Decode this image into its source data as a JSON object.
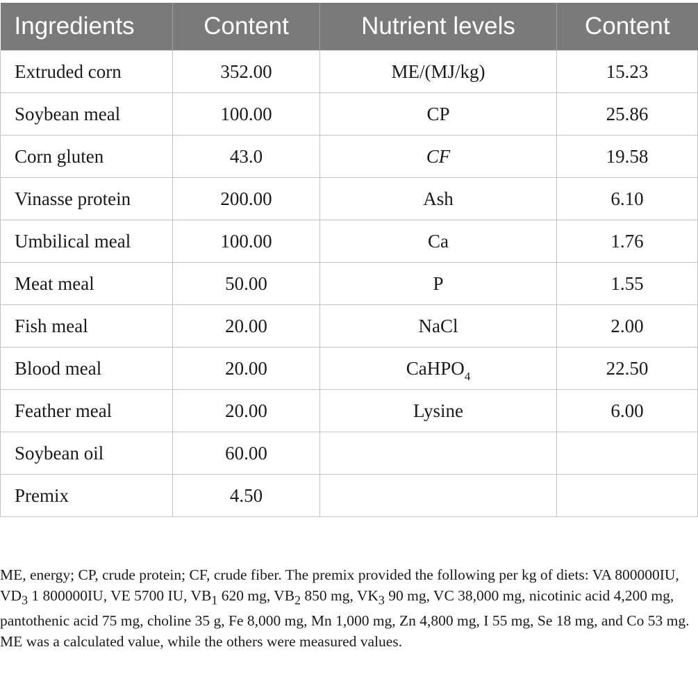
{
  "table": {
    "headers": [
      "Ingredients",
      "Content",
      "Nutrient levels",
      "Content"
    ],
    "rows": [
      {
        "ingredient": "Extruded corn",
        "content": "352.00",
        "nutrient": "ME/(MJ/kg)",
        "nutrient_content": "15.23"
      },
      {
        "ingredient": "Soybean meal",
        "content": "100.00",
        "nutrient": "CP",
        "nutrient_content": "25.86"
      },
      {
        "ingredient": "Corn gluten",
        "content": "43.0",
        "nutrient": "CF",
        "nutrient_content": "19.58"
      },
      {
        "ingredient": "Vinasse protein",
        "content": "200.00",
        "nutrient": "Ash",
        "nutrient_content": "6.10"
      },
      {
        "ingredient": "Umbilical meal",
        "content": "100.00",
        "nutrient": "Ca",
        "nutrient_content": "1.76"
      },
      {
        "ingredient": "Meat meal",
        "content": "50.00",
        "nutrient": "P",
        "nutrient_content": "1.55"
      },
      {
        "ingredient": "Fish meal",
        "content": "20.00",
        "nutrient": "NaCl",
        "nutrient_content": "2.00"
      },
      {
        "ingredient": "Blood meal",
        "content": "20.00",
        "nutrient": "CaHPO",
        "nutrient_sub": "4",
        "nutrient_content": "22.50"
      },
      {
        "ingredient": "Feather meal",
        "content": "20.00",
        "nutrient": "Lysine",
        "nutrient_content": "6.00"
      },
      {
        "ingredient": "Soybean oil",
        "content": "60.00",
        "nutrient": "",
        "nutrient_content": ""
      },
      {
        "ingredient": "Premix",
        "content": "4.50",
        "nutrient": "",
        "nutrient_content": ""
      }
    ]
  },
  "footnote": {
    "p1": "ME, energy; CP, crude protein; CF, crude fiber. The premix provided the following per kg of diets: VA 800000IU, VD",
    "s1": "3",
    "p2": " 1 800000IU, VE 5700 IU, VB",
    "s2": "1",
    "p3": " 620 mg, VB",
    "s3": "2",
    "p4": " 850 mg, VK",
    "s4": "3",
    "p5": " 90 mg, VC 38,000 mg, nicotinic acid 4,200 mg, pantothenic acid 75 mg, choline 35 g, Fe 8,000 mg, Mn 1,000 mg, Zn 4,800 mg, I 55 mg, Se 18 mg, and Co 53 mg. ME was a calculated value, while the others were measured values."
  }
}
